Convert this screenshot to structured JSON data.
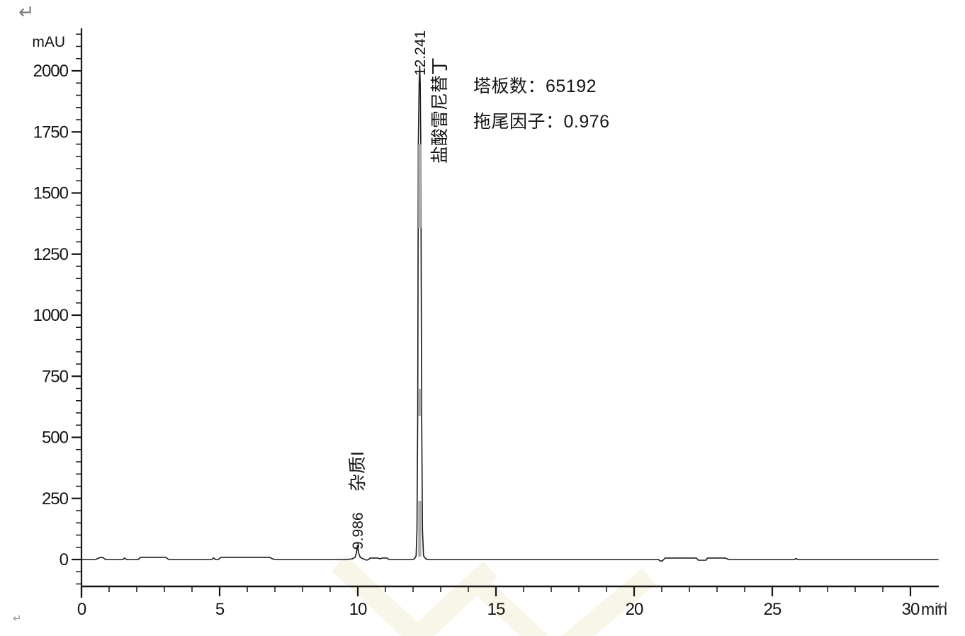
{
  "page": {
    "background": "#ffffff",
    "paragraph_marks": {
      "top_left": "↵",
      "bottom_left": "↵",
      "after_axis": "↵"
    }
  },
  "chart_data": {
    "type": "line",
    "title": "",
    "ylabel": "mAU",
    "xlabel": "",
    "x_unit": "min",
    "xlim": [
      0,
      31
    ],
    "ylim": [
      -105,
      2175
    ],
    "x_major_ticks": [
      0,
      5,
      10,
      15,
      20,
      25,
      30
    ],
    "x_minor_step_min": 1,
    "y_major_ticks": [
      0,
      250,
      500,
      750,
      1000,
      1250,
      1500,
      1750,
      2000
    ],
    "y_minor_step_mAU": 50,
    "grid": false,
    "legend": null,
    "trace_color": "#1b1b1b",
    "axis_color": "#161616",
    "series": [
      {
        "name": "detector-signal",
        "points": [
          [
            0,
            0
          ],
          [
            0.52,
            0
          ],
          [
            0.58,
            4
          ],
          [
            0.68,
            8
          ],
          [
            0.78,
            8
          ],
          [
            0.84,
            2
          ],
          [
            0.92,
            0
          ],
          [
            1.5,
            0
          ],
          [
            1.56,
            6
          ],
          [
            1.63,
            0
          ],
          [
            2.05,
            0
          ],
          [
            2.14,
            9
          ],
          [
            3.05,
            9
          ],
          [
            3.16,
            0
          ],
          [
            4.72,
            0
          ],
          [
            4.78,
            7
          ],
          [
            4.85,
            0
          ],
          [
            4.95,
            0
          ],
          [
            5.05,
            9
          ],
          [
            6.8,
            9
          ],
          [
            6.93,
            2
          ],
          [
            7.02,
            0
          ],
          [
            9.6,
            0
          ],
          [
            9.8,
            3
          ],
          [
            9.9,
            9
          ],
          [
            9.95,
            26
          ],
          [
            9.986,
            57
          ],
          [
            10.03,
            26
          ],
          [
            10.09,
            9
          ],
          [
            10.19,
            3
          ],
          [
            10.27,
            0
          ],
          [
            10.31,
            -3
          ],
          [
            10.39,
            0
          ],
          [
            10.45,
            6
          ],
          [
            10.72,
            6
          ],
          [
            10.79,
            3
          ],
          [
            10.9,
            6
          ],
          [
            11.06,
            6
          ],
          [
            11.12,
            0
          ],
          [
            12.0,
            0
          ],
          [
            12.06,
            4
          ],
          [
            12.11,
            15
          ],
          [
            12.14,
            120
          ],
          [
            12.17,
            600
          ],
          [
            12.19,
            1700
          ],
          [
            12.22,
            1950
          ],
          [
            12.241,
            2020
          ],
          [
            12.26,
            1950
          ],
          [
            12.28,
            1700
          ],
          [
            12.31,
            600
          ],
          [
            12.34,
            120
          ],
          [
            12.38,
            15
          ],
          [
            12.45,
            4
          ],
          [
            12.52,
            0
          ],
          [
            20.88,
            0
          ],
          [
            20.94,
            -6
          ],
          [
            21.02,
            -6
          ],
          [
            21.07,
            0
          ],
          [
            21.12,
            6
          ],
          [
            22.25,
            6
          ],
          [
            22.32,
            -3
          ],
          [
            22.6,
            -3
          ],
          [
            22.66,
            6
          ],
          [
            23.3,
            6
          ],
          [
            23.42,
            0
          ],
          [
            25.8,
            0
          ],
          [
            25.86,
            4
          ],
          [
            25.93,
            0
          ],
          [
            31.0,
            0
          ]
        ]
      }
    ],
    "peaks": [
      {
        "rt": 9.986,
        "rt_label": "9.986",
        "name": "杂质I",
        "major": false,
        "apex_mAU": 57
      },
      {
        "rt": 12.241,
        "rt_label": "12.241",
        "name": "盐酸雷尼替丁",
        "major": true,
        "apex_mAU": 2020
      }
    ],
    "apex_marker": {
      "rt": 12.241,
      "color": "#ababab",
      "segments_mAU": [
        [
          1357,
          1699
        ],
        [
          588,
          699
        ],
        [
          12,
          240
        ]
      ]
    },
    "annotations": [
      {
        "label": "塔板数",
        "value": "65192",
        "text": "塔板数：65192"
      },
      {
        "label": "拖尾因子",
        "value": "0.976",
        "text": "拖尾因子：0.976"
      }
    ],
    "watermark_color": "#f8f5e9"
  }
}
